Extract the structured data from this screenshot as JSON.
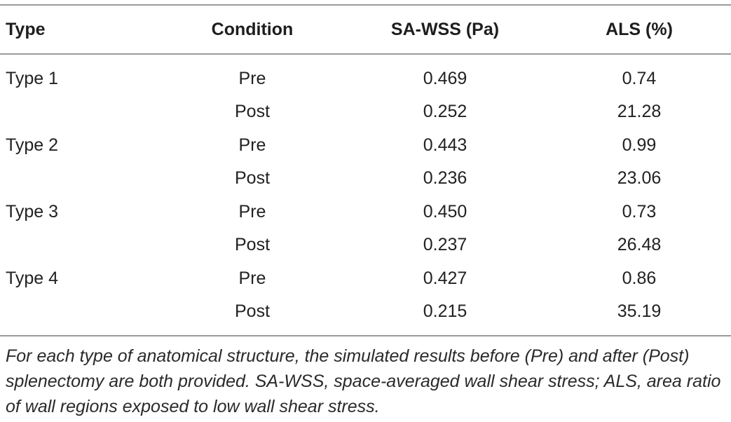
{
  "table": {
    "headers": [
      "Type",
      "Condition",
      "SA-WSS (Pa)",
      "ALS (%)"
    ],
    "rows": [
      {
        "type": "Type 1",
        "condition": "Pre",
        "sa_wss": "0.469",
        "als": "0.74"
      },
      {
        "type": "",
        "condition": "Post",
        "sa_wss": "0.252",
        "als": "21.28"
      },
      {
        "type": "Type 2",
        "condition": "Pre",
        "sa_wss": "0.443",
        "als": "0.99"
      },
      {
        "type": "",
        "condition": "Post",
        "sa_wss": "0.236",
        "als": "23.06"
      },
      {
        "type": "Type 3",
        "condition": "Pre",
        "sa_wss": "0.450",
        "als": "0.73"
      },
      {
        "type": "",
        "condition": "Post",
        "sa_wss": "0.237",
        "als": "26.48"
      },
      {
        "type": "Type 4",
        "condition": "Pre",
        "sa_wss": "0.427",
        "als": "0.86"
      },
      {
        "type": "",
        "condition": "Post",
        "sa_wss": "0.215",
        "als": "35.19"
      }
    ],
    "footnote": "For each type of anatomical structure, the simulated results before (Pre) and after (Post) splenectomy are both provided. SA-WSS, space-averaged wall shear stress; ALS, area ratio of wall regions exposed to low wall shear stress."
  }
}
